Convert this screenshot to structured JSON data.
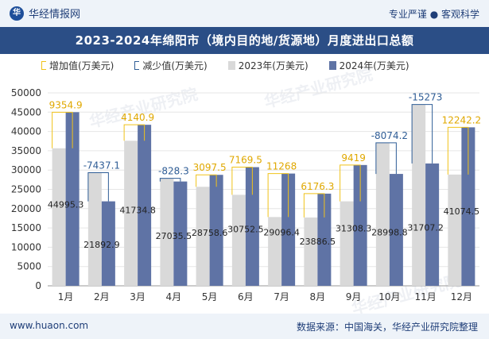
{
  "header": {
    "brand": "华经情报网",
    "tagline": "专业严谨 ● 客观科学",
    "title": "2023-2024年绵阳市（境内目的地/货源地）月度进出口总额"
  },
  "legend": {
    "increase": "增加值(万美元)",
    "decrease": "减少值(万美元)",
    "y2023": "2023年(万美元)",
    "y2024": "2024年(万美元)"
  },
  "footer": {
    "url": "www.huaon.com",
    "source": "数据来源：中国海关，华经产业研究院整理"
  },
  "watermark": "华经产业研究院",
  "chart_data": {
    "type": "bar",
    "categories": [
      "1月",
      "2月",
      "3月",
      "4月",
      "5月",
      "6月",
      "7月",
      "8月",
      "9月",
      "10月",
      "11月",
      "12月"
    ],
    "series": [
      {
        "name": "2023年(万美元)",
        "values": [
          35640.4,
          29330.0,
          37593.9,
          27863.8,
          25661.1,
          23583.0,
          17828.4,
          17710.3,
          21889.3,
          37073.0,
          46980.2,
          28832.3
        ]
      },
      {
        "name": "2024年(万美元)",
        "values": [
          44995.3,
          21892.9,
          41734.8,
          27035.5,
          28758.6,
          30752.5,
          29096.4,
          23886.5,
          31308.3,
          28998.8,
          31707.2,
          41074.5
        ]
      }
    ],
    "diff": [
      9354.9,
      -7437.1,
      4140.9,
      -828.3,
      3097.5,
      7169.5,
      11268,
      6176.3,
      9419,
      -8074.2,
      -15273,
      12242.2
    ],
    "diff_labels": [
      "9354.9",
      "-7437.1",
      "4140.9",
      "-828.3",
      "3097.5",
      "7169.5",
      "11268",
      "6176.3",
      "9419",
      "-8074.2",
      "-15273",
      "12242.2"
    ],
    "value_labels_2024": [
      "44995.3",
      "21892.9",
      "41734.8",
      "27035.5",
      "28758.6",
      "30752.5",
      "29096.4",
      "23886.5",
      "31308.3",
      "28998.8",
      "31707.2",
      "41074.5"
    ],
    "ylim": [
      0,
      50000
    ],
    "yticks": [
      "0",
      "5000",
      "10000",
      "15000",
      "20000",
      "25000",
      "30000",
      "35000",
      "40000",
      "45000",
      "50000"
    ],
    "colors": {
      "y2023": "#d9d9d9",
      "y2024": "#5f73a5",
      "increase": "#f0c21a",
      "decrease": "#2f5d96",
      "increase_label": "#e0a800",
      "decrease_label": "#2f5d96"
    },
    "grid": true,
    "legend_position": "top"
  }
}
